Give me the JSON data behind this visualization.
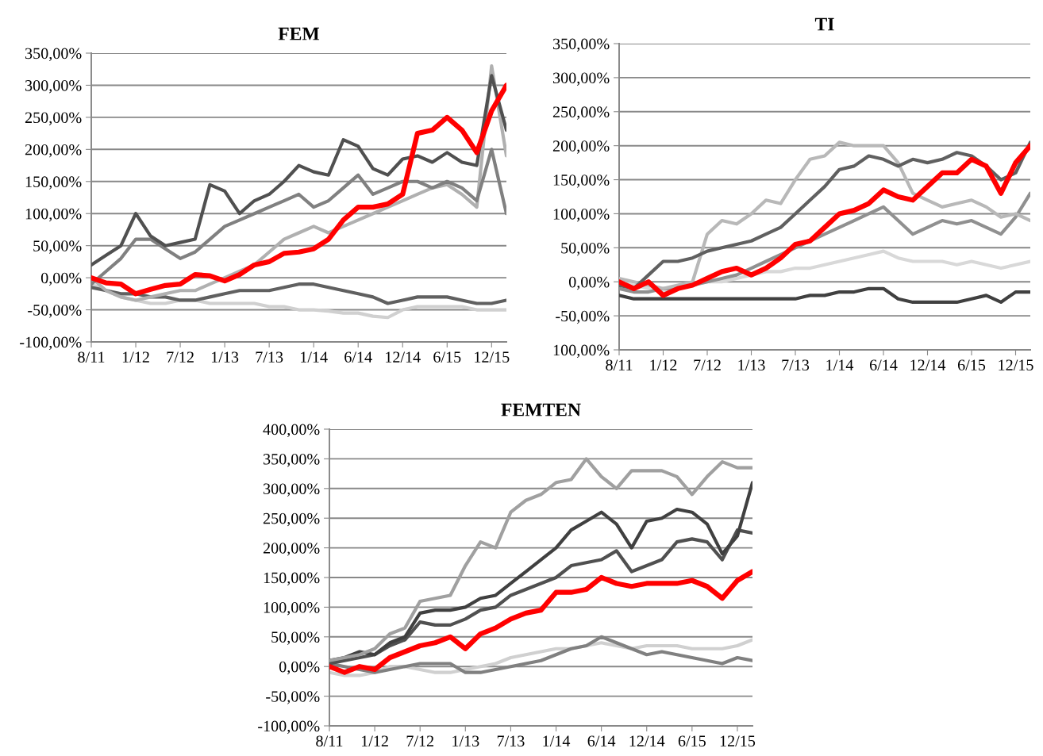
{
  "chart_data": [
    {
      "type": "line",
      "title": "FEM",
      "grid": "y",
      "categories": [
        "8/11",
        null,
        null,
        "1/12",
        null,
        null,
        "7/12",
        null,
        null,
        "1/13",
        null,
        null,
        "7/13",
        null,
        null,
        "1/14",
        null,
        null,
        "6/14",
        null,
        null,
        "12/14",
        null,
        null,
        "6/15",
        null,
        null,
        "12/15",
        null
      ],
      "ylim": [
        -100,
        350
      ],
      "yticks": [
        {
          "value": -100,
          "label": "-100,00%"
        },
        {
          "value": -50,
          "label": "-50,00%"
        },
        {
          "value": 0,
          "label": "0,00%"
        },
        {
          "value": 50,
          "label": "50,00%"
        },
        {
          "value": 100,
          "label": "100,00%"
        },
        {
          "value": 150,
          "label": "150,00%"
        },
        {
          "value": 200,
          "label": "200,00%"
        },
        {
          "value": 250,
          "label": "250,00%"
        },
        {
          "value": 300,
          "label": "300,00%"
        },
        {
          "value": 350,
          "label": "350,00%"
        }
      ],
      "series": [
        {
          "color": "#d0d0d0",
          "values": [
            -10,
            -20,
            -30,
            -35,
            -40,
            -40,
            -35,
            -35,
            -40,
            -40,
            -40,
            -40,
            -45,
            -45,
            -50,
            -50,
            -52,
            -55,
            -55,
            -60,
            -62,
            -50,
            -45,
            -45,
            -45,
            -45,
            -50,
            -50,
            -50
          ]
        },
        {
          "color": "#606060",
          "values": [
            -15,
            -20,
            -25,
            -25,
            -30,
            -30,
            -35,
            -35,
            -30,
            -25,
            -20,
            -20,
            -20,
            -15,
            -10,
            -10,
            -15,
            -20,
            -25,
            -30,
            -40,
            -35,
            -30,
            -30,
            -30,
            -35,
            -40,
            -40,
            -35
          ]
        },
        {
          "color": "#b0b0b0",
          "values": [
            0,
            -20,
            -30,
            -35,
            -30,
            -25,
            -20,
            -20,
            -10,
            0,
            10,
            20,
            40,
            60,
            70,
            80,
            70,
            80,
            90,
            100,
            110,
            120,
            130,
            140,
            145,
            130,
            110,
            330,
            190
          ]
        },
        {
          "color": "#808080",
          "values": [
            -10,
            10,
            30,
            60,
            60,
            45,
            30,
            40,
            60,
            80,
            90,
            100,
            110,
            120,
            130,
            110,
            120,
            140,
            160,
            130,
            140,
            150,
            150,
            140,
            150,
            140,
            120,
            200,
            100
          ]
        },
        {
          "color": "#505050",
          "values": [
            20,
            35,
            50,
            100,
            65,
            50,
            55,
            60,
            145,
            135,
            100,
            120,
            130,
            150,
            175,
            165,
            160,
            215,
            205,
            170,
            160,
            185,
            190,
            180,
            195,
            180,
            175,
            315,
            230
          ]
        },
        {
          "color": "#ff0000",
          "values": [
            0,
            -8,
            -10,
            -25,
            -18,
            -12,
            -10,
            5,
            3,
            -5,
            5,
            20,
            25,
            38,
            40,
            45,
            60,
            90,
            110,
            110,
            115,
            130,
            225,
            230,
            250,
            230,
            195,
            260,
            300
          ]
        }
      ]
    },
    {
      "type": "line",
      "title": "TI",
      "grid": "y",
      "categories": [
        "8/11",
        null,
        null,
        "1/12",
        null,
        null,
        "7/12",
        null,
        null,
        "1/13",
        null,
        null,
        "7/13",
        null,
        null,
        "1/14",
        null,
        null,
        "6/14",
        null,
        null,
        "12/14",
        null,
        null,
        "6/15",
        null,
        null,
        "12/15",
        null
      ],
      "ylim": [
        -100,
        350
      ],
      "yticks": [
        {
          "value": -100,
          "label": "100,00%"
        },
        {
          "value": -50,
          "label": "-50,00%"
        },
        {
          "value": 0,
          "label": "0,00%"
        },
        {
          "value": 50,
          "label": "50,00%"
        },
        {
          "value": 100,
          "label": "100,00%"
        },
        {
          "value": 150,
          "label": "150,00%"
        },
        {
          "value": 200,
          "label": "200,00%"
        },
        {
          "value": 250,
          "label": "250,00%"
        },
        {
          "value": 300,
          "label": "300,00%"
        },
        {
          "value": 350,
          "label": "350,00%"
        }
      ],
      "series": [
        {
          "color": "#d8d8d8",
          "values": [
            0,
            -5,
            -10,
            -15,
            -10,
            -5,
            0,
            0,
            5,
            10,
            15,
            15,
            20,
            20,
            25,
            30,
            35,
            40,
            45,
            35,
            30,
            30,
            30,
            25,
            30,
            25,
            20,
            25,
            30
          ]
        },
        {
          "color": "#404040",
          "values": [
            -20,
            -25,
            -25,
            -25,
            -25,
            -25,
            -25,
            -25,
            -25,
            -25,
            -25,
            -25,
            -25,
            -20,
            -20,
            -15,
            -15,
            -10,
            -10,
            -25,
            -30,
            -30,
            -30,
            -30,
            -25,
            -20,
            -30,
            -15,
            -15
          ]
        },
        {
          "color": "#909090",
          "values": [
            -10,
            -15,
            -15,
            -10,
            -10,
            -5,
            0,
            5,
            10,
            20,
            30,
            40,
            50,
            60,
            70,
            80,
            90,
            100,
            110,
            90,
            70,
            80,
            90,
            85,
            90,
            80,
            70,
            95,
            130
          ]
        },
        {
          "color": "#b8b8b8",
          "values": [
            5,
            0,
            -5,
            -10,
            -5,
            0,
            70,
            90,
            85,
            100,
            120,
            115,
            150,
            180,
            185,
            205,
            200,
            200,
            200,
            175,
            130,
            120,
            110,
            115,
            120,
            110,
            95,
            100,
            90
          ]
        },
        {
          "color": "#606060",
          "values": [
            -5,
            -10,
            10,
            30,
            30,
            35,
            45,
            50,
            55,
            60,
            70,
            80,
            100,
            120,
            140,
            165,
            170,
            185,
            180,
            170,
            180,
            175,
            180,
            190,
            185,
            170,
            150,
            160,
            205
          ]
        },
        {
          "color": "#ff0000",
          "values": [
            0,
            -10,
            0,
            -20,
            -10,
            -5,
            5,
            15,
            20,
            10,
            20,
            35,
            55,
            60,
            80,
            100,
            105,
            115,
            135,
            125,
            120,
            140,
            160,
            160,
            180,
            170,
            130,
            175,
            200
          ]
        }
      ]
    },
    {
      "type": "line",
      "title": "FEMTEN",
      "grid": "y",
      "categories": [
        "8/11",
        null,
        null,
        "1/12",
        null,
        null,
        "7/12",
        null,
        null,
        "1/13",
        null,
        null,
        "7/13",
        null,
        null,
        "1/14",
        null,
        null,
        "6/14",
        null,
        null,
        "12/14",
        null,
        null,
        "6/15",
        null,
        null,
        "12/15",
        null
      ],
      "ylim": [
        -100,
        400
      ],
      "yticks": [
        {
          "value": -100,
          "label": "-100,00%"
        },
        {
          "value": -50,
          "label": "-50,00%"
        },
        {
          "value": 0,
          "label": "0,00%"
        },
        {
          "value": 50,
          "label": "50,00%"
        },
        {
          "value": 100,
          "label": "100,00%"
        },
        {
          "value": 150,
          "label": "150,00%"
        },
        {
          "value": 200,
          "label": "200,00%"
        },
        {
          "value": 250,
          "label": "250,00%"
        },
        {
          "value": 300,
          "label": "300,00%"
        },
        {
          "value": 350,
          "label": "350,00%"
        },
        {
          "value": 400,
          "label": "400,00%"
        }
      ],
      "series": [
        {
          "color": "#d0d0d0",
          "values": [
            -10,
            -15,
            -15,
            -10,
            0,
            0,
            -5,
            -10,
            -10,
            -5,
            0,
            5,
            15,
            20,
            25,
            30,
            30,
            35,
            40,
            35,
            30,
            35,
            35,
            35,
            30,
            30,
            30,
            35,
            45
          ]
        },
        {
          "color": "#808080",
          "values": [
            5,
            0,
            -5,
            -10,
            -5,
            0,
            5,
            5,
            5,
            -10,
            -10,
            -5,
            0,
            5,
            10,
            20,
            30,
            35,
            50,
            40,
            30,
            20,
            25,
            20,
            15,
            10,
            5,
            15,
            10
          ]
        },
        {
          "color": "#505050",
          "values": [
            5,
            10,
            15,
            20,
            35,
            45,
            75,
            70,
            70,
            80,
            95,
            100,
            120,
            130,
            140,
            150,
            170,
            175,
            180,
            195,
            160,
            170,
            180,
            210,
            215,
            210,
            180,
            230,
            225
          ]
        },
        {
          "color": "#404040",
          "values": [
            10,
            15,
            25,
            20,
            40,
            50,
            90,
            95,
            95,
            100,
            115,
            120,
            140,
            160,
            180,
            200,
            230,
            245,
            260,
            240,
            200,
            245,
            250,
            265,
            260,
            240,
            190,
            220,
            310
          ]
        },
        {
          "color": "#a0a0a0",
          "values": [
            10,
            15,
            20,
            30,
            55,
            65,
            110,
            115,
            120,
            170,
            210,
            200,
            260,
            280,
            290,
            310,
            315,
            350,
            320,
            300,
            330,
            330,
            330,
            320,
            290,
            320,
            345,
            335,
            335
          ]
        },
        {
          "color": "#ff0000",
          "values": [
            0,
            -10,
            0,
            -5,
            15,
            25,
            35,
            40,
            50,
            30,
            55,
            65,
            80,
            90,
            95,
            125,
            125,
            130,
            150,
            140,
            135,
            140,
            140,
            140,
            145,
            135,
            115,
            145,
            160
          ]
        }
      ]
    }
  ]
}
